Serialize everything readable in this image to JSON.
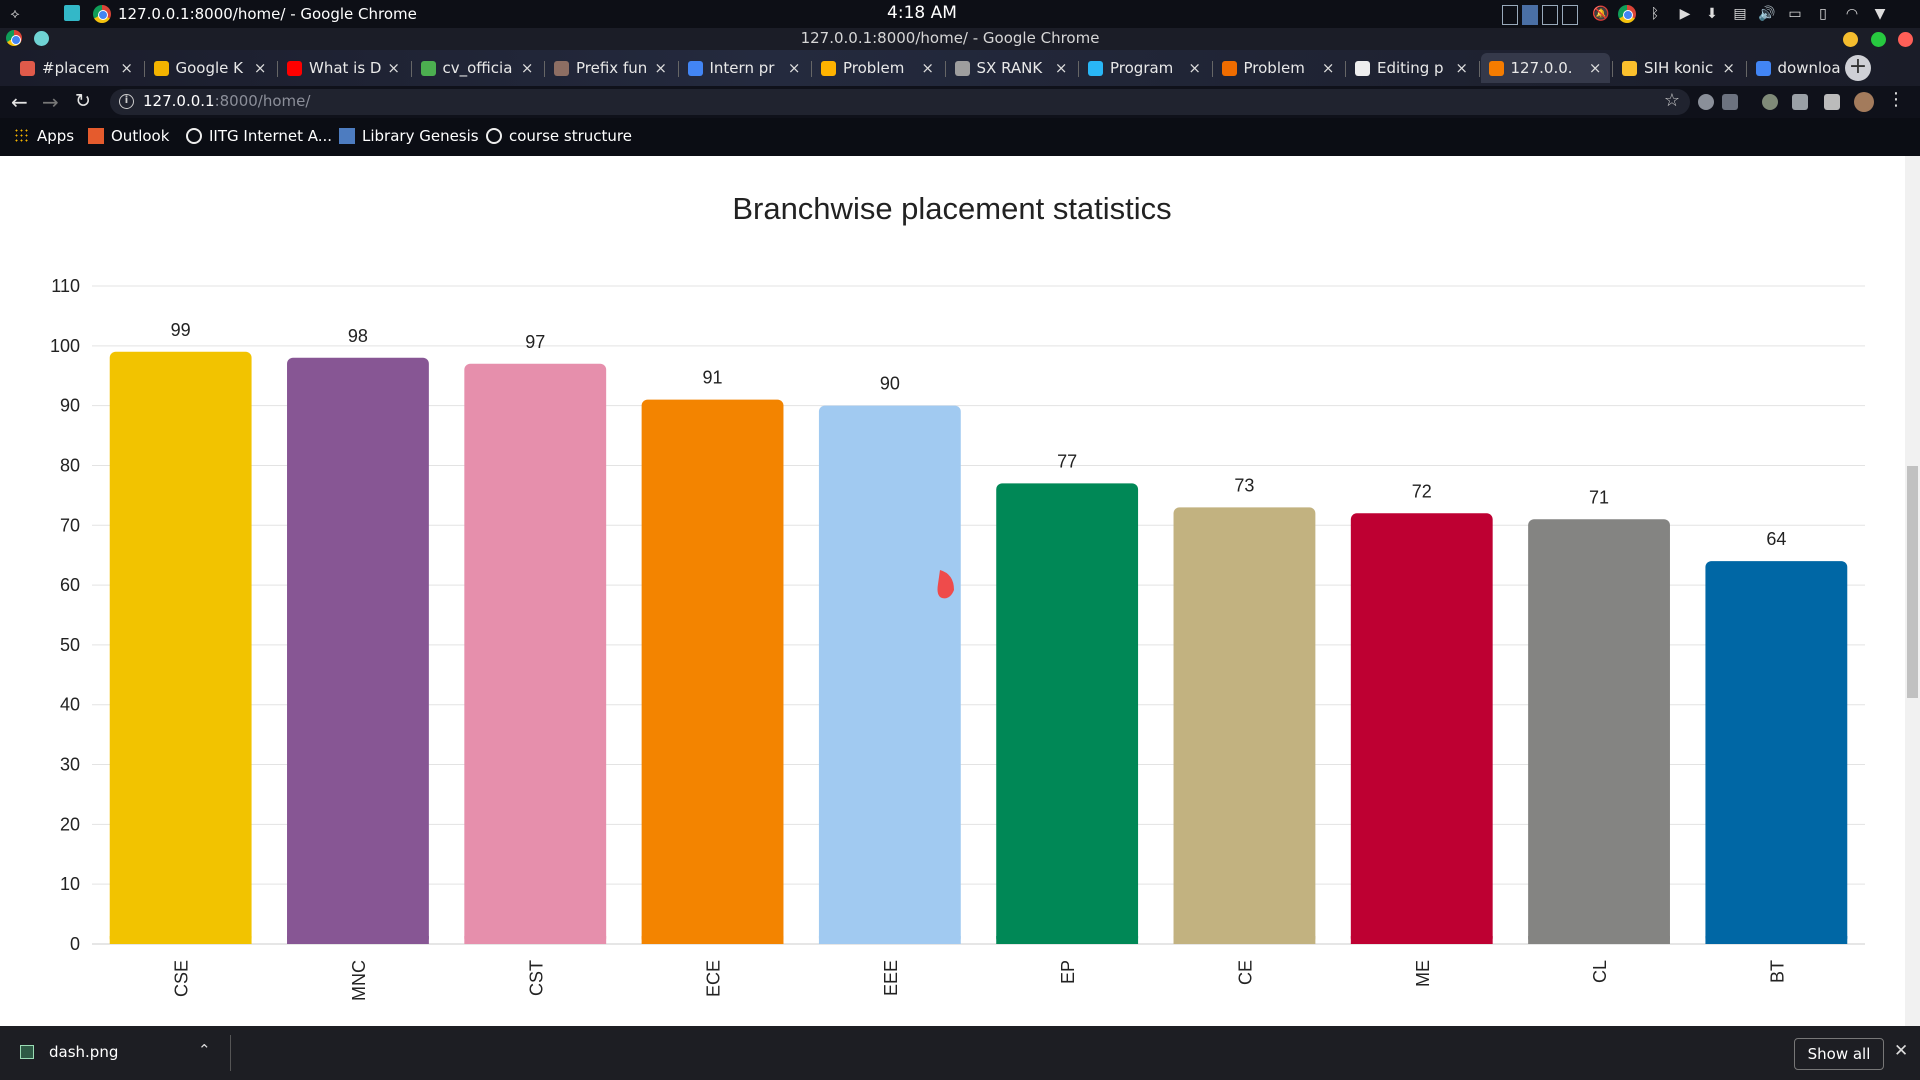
{
  "system": {
    "window_title": "127.0.0.1:8000/home/ - Google Chrome",
    "clock": "4:18 AM"
  },
  "window": {
    "title": "127.0.0.1:8000/home/ - Google Chrome"
  },
  "tabs": [
    {
      "label": "#placem",
      "favicon_color": "#e05a4a"
    },
    {
      "label": "Google K",
      "favicon_color": "#f4b400"
    },
    {
      "label": "What is D",
      "favicon_color": "#ff0000"
    },
    {
      "label": "cv_officia",
      "favicon_color": "#4caf50"
    },
    {
      "label": "Prefix fun",
      "favicon_color": "#8d6e63"
    },
    {
      "label": "Intern pr",
      "favicon_color": "#4285f4"
    },
    {
      "label": "Problem",
      "favicon_color": "#ffb300"
    },
    {
      "label": "SX RANK",
      "favicon_color": "#9e9e9e"
    },
    {
      "label": "Program",
      "favicon_color": "#29b6f6"
    },
    {
      "label": "Problem",
      "favicon_color": "#ef6c00"
    },
    {
      "label": "Editing p",
      "favicon_color": "#eeeeee"
    },
    {
      "label": "127.0.0.",
      "favicon_color": "#f57c00",
      "active": true
    },
    {
      "label": "SIH konic",
      "favicon_color": "#fbc02d"
    },
    {
      "label": "downloa",
      "favicon_color": "#4285f4"
    }
  ],
  "address_bar": {
    "host": "127.0.0.1",
    "path": ":8000/home/"
  },
  "bookmarks": [
    {
      "label": "Apps",
      "icon": "apps-grid-icon"
    },
    {
      "label": "Outlook",
      "icon": "outlook-icon"
    },
    {
      "label": "IITG Internet A...",
      "icon": "globe-icon"
    },
    {
      "label": "Library Genesis",
      "icon": "book-icon"
    },
    {
      "label": "course structure",
      "icon": "globe-icon"
    }
  ],
  "chart_data": {
    "type": "bar",
    "title": "Branchwise placement statistics",
    "categories": [
      "CSE",
      "MNC",
      "CST",
      "ECE",
      "EEE",
      "EP",
      "CE",
      "ME",
      "CL",
      "BT"
    ],
    "values": [
      99,
      98,
      97,
      91,
      90,
      77,
      73,
      72,
      71,
      64
    ],
    "colors": [
      "#f2c300",
      "#875694",
      "#e68fac",
      "#f38400",
      "#a1caf1",
      "#008856",
      "#c2b280",
      "#be0032",
      "#848482",
      "#0067a5"
    ],
    "ylim": [
      0,
      110
    ],
    "yticks": [
      0,
      10,
      20,
      30,
      40,
      50,
      60,
      70,
      80,
      90,
      100,
      110
    ],
    "grid": true,
    "legend": "none",
    "xlabel": "",
    "ylabel": ""
  },
  "download_bar": {
    "file_name": "dash.png",
    "show_all_label": "Show all"
  }
}
